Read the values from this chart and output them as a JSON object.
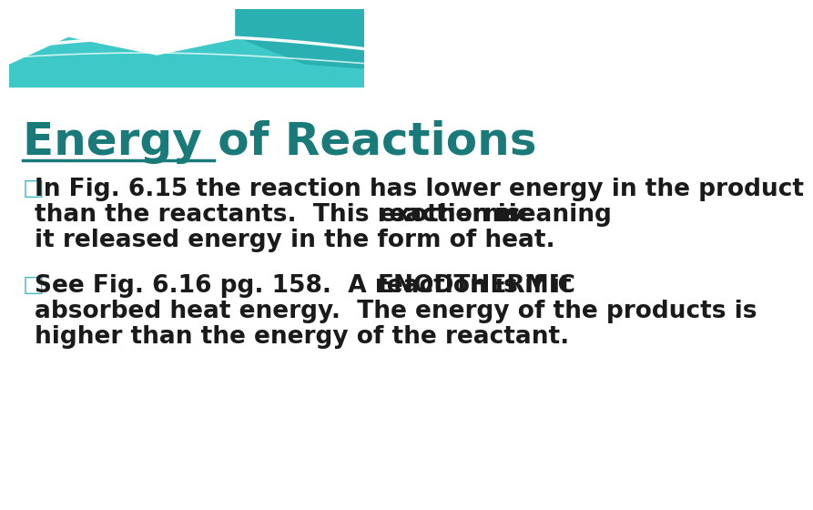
{
  "title": "Energy of Reactions",
  "title_color": "#1a7a7a",
  "title_fontsize": 36,
  "bg_color": "#ffffff",
  "bullet_color": "#40b8c8",
  "bullet_char": "□",
  "body_color": "#1a1a1a",
  "body_fontsize": 19,
  "bullet1_line1": "In Fig. 6.15 the reaction has lower energy in the product",
  "bullet1_line2_plain": "than the reactants.  This reaction is ",
  "bullet1_underline": "exothermic",
  "bullet1_line2_after": " meaning",
  "bullet1_line3": "it released energy in the form of heat.",
  "bullet2_line1_plain": "See Fig. 6.16 pg. 158.  A reaction is ",
  "bullet2_underline": "ENODTHERMIC",
  "bullet2_line1_after": " if it",
  "bullet2_line2": "absorbed heat energy.  The energy of the products is",
  "bullet2_line3": "higher than the energy of the reactant.",
  "teal_color": "#3ec8c8",
  "teal_dark": "#2ab0b0"
}
